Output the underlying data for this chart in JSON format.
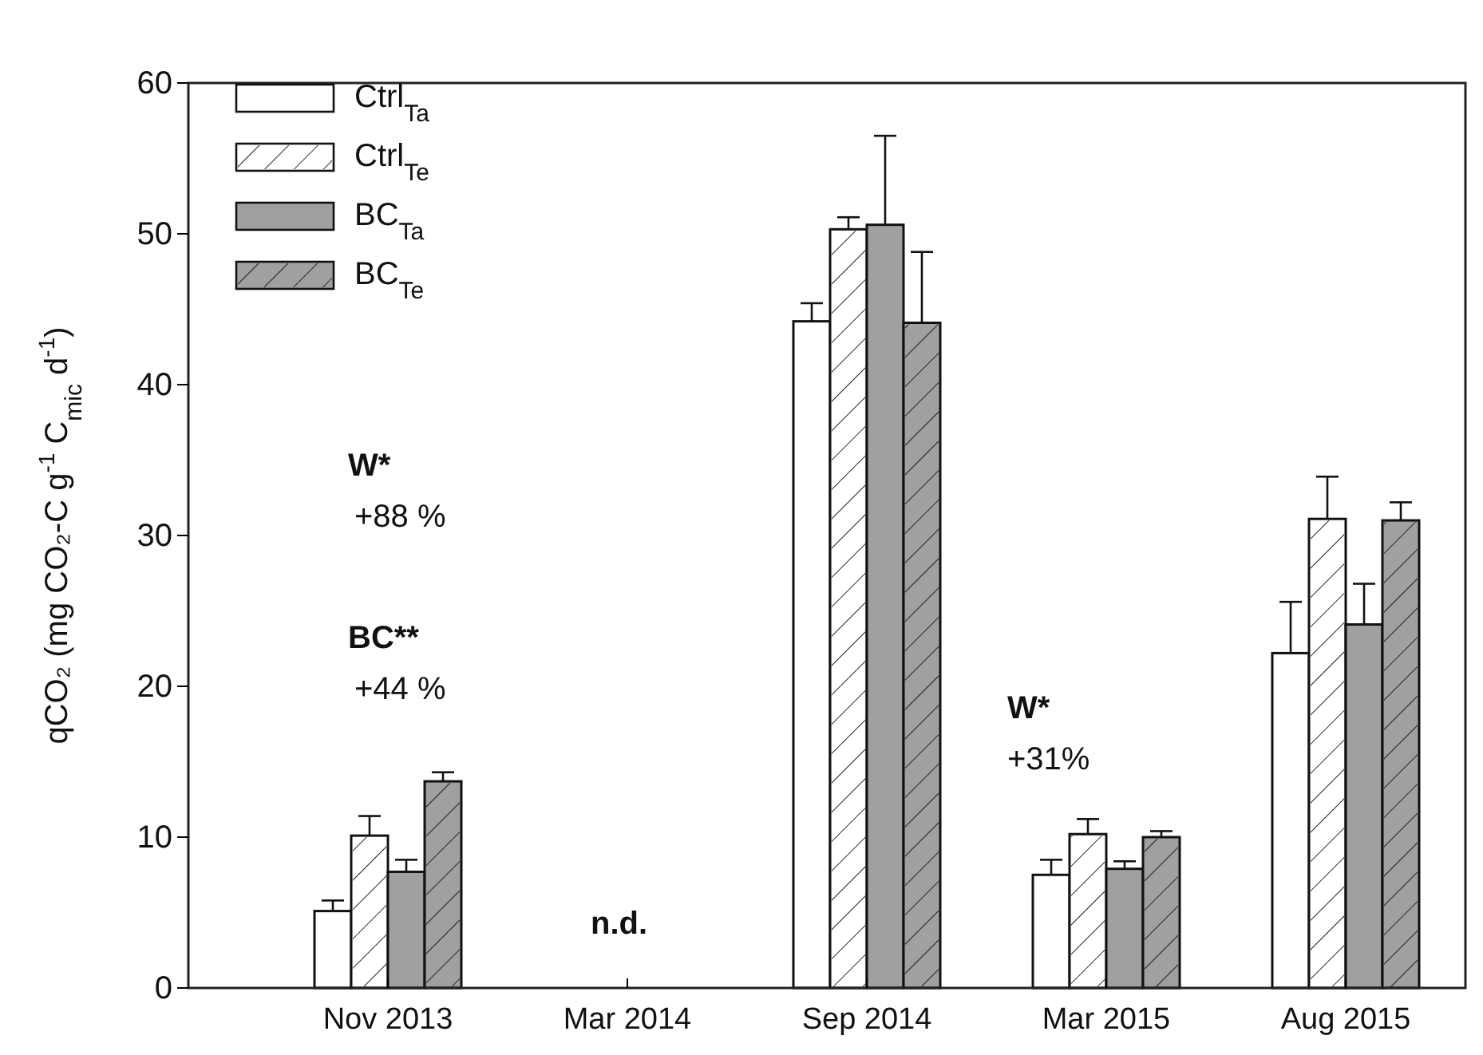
{
  "chart_data": {
    "type": "bar",
    "ylabel": "qCO₂ (mg CO₂-C g$^{-1}$ C$_{mic}$ d$^{-1}$)",
    "categories": [
      "Nov 2013",
      "Mar 2014",
      "Sep 2014",
      "Mar 2015",
      "Aug 2015"
    ],
    "series": [
      {
        "name": "Ctrl$_{Ta}$",
        "color": "#ffffff",
        "values": [
          5.1,
          null,
          44.2,
          7.5,
          22.2
        ],
        "errors": [
          0.7,
          null,
          1.2,
          1.0,
          3.4
        ]
      },
      {
        "name": "Ctrl$_{Te}$",
        "color": "#ffffff",
        "values": [
          10.1,
          null,
          50.3,
          10.2,
          31.1
        ],
        "errors": [
          1.3,
          null,
          0.8,
          1.0,
          2.8
        ]
      },
      {
        "name": "BC$_{Ta}$",
        "color": "#a0a0a0",
        "values": [
          7.7,
          null,
          50.6,
          7.9,
          24.1
        ],
        "errors": [
          0.8,
          null,
          5.9,
          0.5,
          2.7
        ]
      },
      {
        "name": "BC$_{Te}$",
        "color": "#a0a0a0",
        "values": [
          13.7,
          null,
          44.1,
          10.0,
          31.0
        ],
        "errors": [
          0.6,
          null,
          4.7,
          0.4,
          1.2
        ]
      }
    ],
    "ylim": [
      0,
      60
    ],
    "yticks": [
      0,
      10,
      20,
      30,
      40,
      50,
      60
    ],
    "grid": false,
    "legend": "top left",
    "annotations": [
      "W*",
      "+88 %",
      "BC**",
      "+44 %",
      "n.d.",
      "W*",
      "+31%"
    ]
  }
}
